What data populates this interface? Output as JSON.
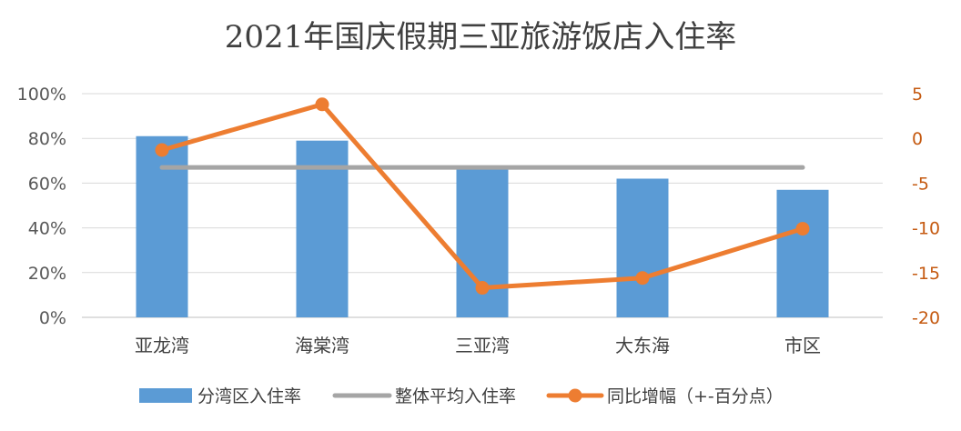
{
  "chart_data": {
    "type": "bar",
    "title": "2021年国庆假期三亚旅游饭店入住率",
    "categories": [
      "亚龙湾",
      "海棠湾",
      "三亚湾",
      "大东海",
      "市区"
    ],
    "y_left": {
      "ticks": [
        "0%",
        "20%",
        "40%",
        "60%",
        "80%",
        "100%"
      ],
      "ylim": [
        0,
        100
      ]
    },
    "y_right": {
      "ticks": [
        "-20",
        "-15",
        "-10",
        "-5",
        "0",
        "5"
      ],
      "ylim": [
        -20,
        5
      ]
    },
    "series": [
      {
        "name": "分湾区入住率",
        "kind": "bar",
        "axis": "left",
        "color": "#5b9bd5",
        "values": [
          81,
          79,
          67,
          62,
          57
        ]
      },
      {
        "name": "整体平均入住率",
        "kind": "line",
        "axis": "left",
        "color": "#a5a5a5",
        "values": [
          67,
          67,
          67,
          67,
          67
        ]
      },
      {
        "name": "同比增幅（+-百分点）",
        "kind": "line-marker",
        "axis": "right",
        "color": "#ed7d31",
        "values": [
          -1.3,
          3.8,
          -16.7,
          -15.6,
          -10.1
        ]
      }
    ],
    "grid": true,
    "legend_position": "bottom"
  }
}
